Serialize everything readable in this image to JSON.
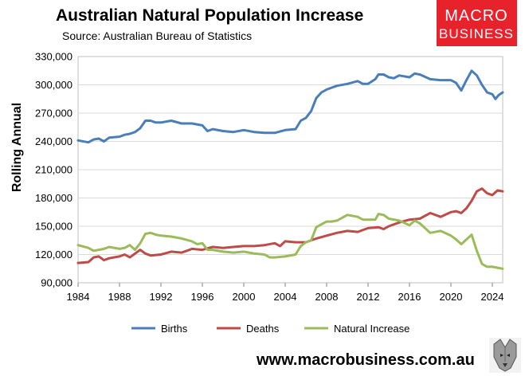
{
  "header": {
    "title": "Australian Natural Population Increase",
    "subtitle": "Source: Australian Bureau of Statistics"
  },
  "logo": {
    "line1": "MACRO",
    "line2": "BUSINESS",
    "background": "#e8222b"
  },
  "footer": {
    "url": "www.macrobusiness.com.au",
    "icon": "wolf-mascot-icon"
  },
  "chart_data": {
    "type": "line",
    "title": "Australian Natural Population Increase",
    "ylabel": "Rolling Annual",
    "xlabel": "",
    "xlim": [
      1984,
      2025
    ],
    "ylim": [
      90000,
      330000
    ],
    "x_ticks": [
      "1984",
      "1988",
      "1992",
      "1996",
      "2000",
      "2004",
      "2008",
      "2012",
      "2016",
      "2020",
      "2024"
    ],
    "y_ticks": [
      "90,000",
      "120,000",
      "150,000",
      "180,000",
      "210,000",
      "240,000",
      "270,000",
      "300,000",
      "330,000"
    ],
    "grid": true,
    "legend_position": "bottom",
    "series": [
      {
        "name": "Births",
        "color": "#4a7ebb",
        "points": [
          [
            1984,
            241000
          ],
          [
            1985,
            239000
          ],
          [
            1985.5,
            242000
          ],
          [
            1986,
            243000
          ],
          [
            1986.5,
            240000
          ],
          [
            1987,
            244000
          ],
          [
            1988,
            245000
          ],
          [
            1988.5,
            247000
          ],
          [
            1989,
            248000
          ],
          [
            1989.5,
            250000
          ],
          [
            1990,
            254000
          ],
          [
            1990.5,
            262000
          ],
          [
            1991,
            262000
          ],
          [
            1991.5,
            260000
          ],
          [
            1992,
            260000
          ],
          [
            1993,
            262000
          ],
          [
            1994,
            259000
          ],
          [
            1995,
            259000
          ],
          [
            1996,
            257000
          ],
          [
            1996.5,
            251000
          ],
          [
            1997,
            253000
          ],
          [
            1998,
            251000
          ],
          [
            1999,
            250000
          ],
          [
            2000,
            252000
          ],
          [
            2001,
            250000
          ],
          [
            2002,
            249000
          ],
          [
            2003,
            249000
          ],
          [
            2004,
            252000
          ],
          [
            2005,
            253000
          ],
          [
            2005.5,
            262000
          ],
          [
            2006,
            265000
          ],
          [
            2006.5,
            272000
          ],
          [
            2007,
            286000
          ],
          [
            2007.5,
            292000
          ],
          [
            2008,
            295000
          ],
          [
            2008.5,
            297000
          ],
          [
            2009,
            299000
          ],
          [
            2010,
            301000
          ],
          [
            2011,
            304000
          ],
          [
            2011.5,
            301000
          ],
          [
            2012,
            301000
          ],
          [
            2012.7,
            306000
          ],
          [
            2013,
            311000
          ],
          [
            2013.5,
            311000
          ],
          [
            2014,
            308000
          ],
          [
            2014.5,
            307000
          ],
          [
            2015,
            310000
          ],
          [
            2016,
            308000
          ],
          [
            2016.5,
            312000
          ],
          [
            2017,
            311000
          ],
          [
            2018,
            306000
          ],
          [
            2019,
            305000
          ],
          [
            2020,
            305000
          ],
          [
            2020.5,
            302000
          ],
          [
            2021,
            294000
          ],
          [
            2021.5,
            305000
          ],
          [
            2022,
            315000
          ],
          [
            2022.5,
            310000
          ],
          [
            2023,
            300000
          ],
          [
            2023.5,
            292000
          ],
          [
            2024,
            290000
          ],
          [
            2024.3,
            285000
          ],
          [
            2024.6,
            289000
          ],
          [
            2025,
            292000
          ]
        ]
      },
      {
        "name": "Deaths",
        "color": "#be4b48",
        "points": [
          [
            1984,
            111000
          ],
          [
            1985,
            112000
          ],
          [
            1985.5,
            117000
          ],
          [
            1986,
            118000
          ],
          [
            1986.5,
            114000
          ],
          [
            1987,
            116000
          ],
          [
            1988,
            118000
          ],
          [
            1988.5,
            120000
          ],
          [
            1989,
            117000
          ],
          [
            1990,
            125000
          ],
          [
            1990.5,
            121000
          ],
          [
            1991,
            119000
          ],
          [
            1992,
            120000
          ],
          [
            1993,
            123000
          ],
          [
            1994,
            122000
          ],
          [
            1994.5,
            124000
          ],
          [
            1995,
            126000
          ],
          [
            1996,
            125000
          ],
          [
            1997,
            128000
          ],
          [
            1998,
            127000
          ],
          [
            1999,
            128000
          ],
          [
            2000,
            129000
          ],
          [
            2001,
            129000
          ],
          [
            2002,
            130000
          ],
          [
            2003,
            132000
          ],
          [
            2003.5,
            129000
          ],
          [
            2004,
            134000
          ],
          [
            2005,
            133000
          ],
          [
            2006,
            133000
          ],
          [
            2007,
            137000
          ],
          [
            2008,
            140000
          ],
          [
            2009,
            143000
          ],
          [
            2010,
            145000
          ],
          [
            2011,
            144000
          ],
          [
            2012,
            148000
          ],
          [
            2013,
            149000
          ],
          [
            2013.5,
            147000
          ],
          [
            2014,
            150000
          ],
          [
            2015,
            154000
          ],
          [
            2016,
            157000
          ],
          [
            2017,
            158000
          ],
          [
            2018,
            164000
          ],
          [
            2019,
            160000
          ],
          [
            2020,
            165000
          ],
          [
            2020.5,
            166000
          ],
          [
            2021,
            164000
          ],
          [
            2021.5,
            169000
          ],
          [
            2022,
            177000
          ],
          [
            2022.5,
            187000
          ],
          [
            2023,
            190000
          ],
          [
            2023.5,
            185000
          ],
          [
            2024,
            183000
          ],
          [
            2024.5,
            188000
          ],
          [
            2025,
            187000
          ]
        ]
      },
      {
        "name": "Natural Increase",
        "color": "#9bbb59",
        "points": [
          [
            1984,
            130000
          ],
          [
            1985,
            127000
          ],
          [
            1985.5,
            124000
          ],
          [
            1986,
            125000
          ],
          [
            1986.5,
            126000
          ],
          [
            1987,
            128000
          ],
          [
            1988,
            126000
          ],
          [
            1988.5,
            127000
          ],
          [
            1989,
            130000
          ],
          [
            1989.5,
            125000
          ],
          [
            1990,
            132000
          ],
          [
            1990.5,
            142000
          ],
          [
            1991,
            143000
          ],
          [
            1991.5,
            141000
          ],
          [
            1992,
            140000
          ],
          [
            1993,
            139000
          ],
          [
            1994,
            137000
          ],
          [
            1995,
            134000
          ],
          [
            1995.5,
            131000
          ],
          [
            1996,
            132000
          ],
          [
            1996.5,
            125000
          ],
          [
            1997,
            125000
          ],
          [
            1998,
            123000
          ],
          [
            1999,
            122000
          ],
          [
            2000,
            123000
          ],
          [
            2001,
            121000
          ],
          [
            2002,
            120000
          ],
          [
            2002.5,
            117000
          ],
          [
            2003,
            117000
          ],
          [
            2004,
            118000
          ],
          [
            2005,
            120000
          ],
          [
            2005.5,
            129000
          ],
          [
            2006,
            133000
          ],
          [
            2006.5,
            135000
          ],
          [
            2007,
            149000
          ],
          [
            2007.5,
            152000
          ],
          [
            2008,
            155000
          ],
          [
            2008.5,
            155000
          ],
          [
            2009,
            156000
          ],
          [
            2010,
            162000
          ],
          [
            2011,
            160000
          ],
          [
            2011.5,
            157000
          ],
          [
            2012,
            157000
          ],
          [
            2012.7,
            157000
          ],
          [
            2013,
            163000
          ],
          [
            2013.5,
            162000
          ],
          [
            2014,
            158000
          ],
          [
            2014.5,
            157000
          ],
          [
            2015,
            156000
          ],
          [
            2016,
            151000
          ],
          [
            2016.5,
            156000
          ],
          [
            2017,
            153000
          ],
          [
            2018,
            143000
          ],
          [
            2019,
            145000
          ],
          [
            2020,
            140000
          ],
          [
            2020.5,
            136000
          ],
          [
            2021,
            131000
          ],
          [
            2021.5,
            136000
          ],
          [
            2022,
            141000
          ],
          [
            2022.5,
            124000
          ],
          [
            2023,
            110000
          ],
          [
            2023.5,
            107000
          ],
          [
            2024,
            107000
          ],
          [
            2024.5,
            106000
          ],
          [
            2025,
            105000
          ]
        ]
      }
    ]
  }
}
